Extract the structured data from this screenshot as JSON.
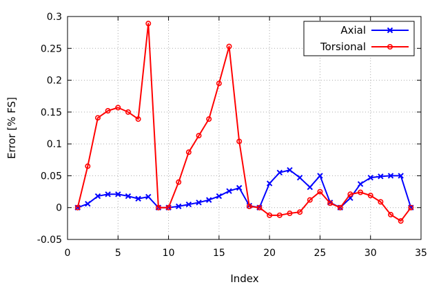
{
  "chart_data": {
    "type": "line",
    "xlabel": "Index",
    "ylabel": "Error [% FS]",
    "xlim": [
      0,
      35
    ],
    "ylim": [
      -0.05,
      0.3
    ],
    "xticks": [
      0,
      5,
      10,
      15,
      20,
      25,
      30,
      35
    ],
    "xtick_labels": [
      "0",
      "5",
      "10",
      "15",
      "20",
      "25",
      "30",
      "35"
    ],
    "yticks": [
      -0.05,
      0,
      0.05,
      0.1,
      0.15,
      0.2,
      0.25,
      0.3
    ],
    "ytick_labels": [
      "-0.05",
      "0",
      "0.05",
      "0.1",
      "0.15",
      "0.2",
      "0.25",
      "0.3"
    ],
    "grid": true,
    "legend_position": "top-right",
    "x": [
      1,
      2,
      3,
      4,
      5,
      6,
      7,
      8,
      9,
      10,
      11,
      12,
      13,
      14,
      15,
      16,
      17,
      18,
      19,
      20,
      21,
      22,
      23,
      24,
      25,
      26,
      27,
      28,
      29,
      30,
      31,
      32,
      33,
      34
    ],
    "series": [
      {
        "name": "Axial",
        "color": "#0000ff",
        "marker": "x",
        "values": [
          0,
          0.006,
          0.018,
          0.021,
          0.021,
          0.018,
          0.014,
          0.017,
          0,
          0,
          0.002,
          0.005,
          0.008,
          0.012,
          0.018,
          0.026,
          0.031,
          0.003,
          0,
          0.038,
          0.055,
          0.059,
          0.047,
          0.032,
          0.05,
          0.008,
          0,
          0.015,
          0.037,
          0.047,
          0.049,
          0.05,
          0.05,
          0
        ]
      },
      {
        "name": "Torsional",
        "color": "#ff0000",
        "marker": "o",
        "values": [
          0,
          0.065,
          0.141,
          0.152,
          0.157,
          0.15,
          0.139,
          0.289,
          0,
          0,
          0.04,
          0.087,
          0.113,
          0.139,
          0.195,
          0.253,
          0.104,
          0.002,
          0,
          -0.012,
          -0.012,
          -0.009,
          -0.007,
          0.012,
          0.025,
          0.007,
          0,
          0.021,
          0.024,
          0.019,
          0.009,
          -0.011,
          -0.021,
          0
        ]
      }
    ]
  }
}
